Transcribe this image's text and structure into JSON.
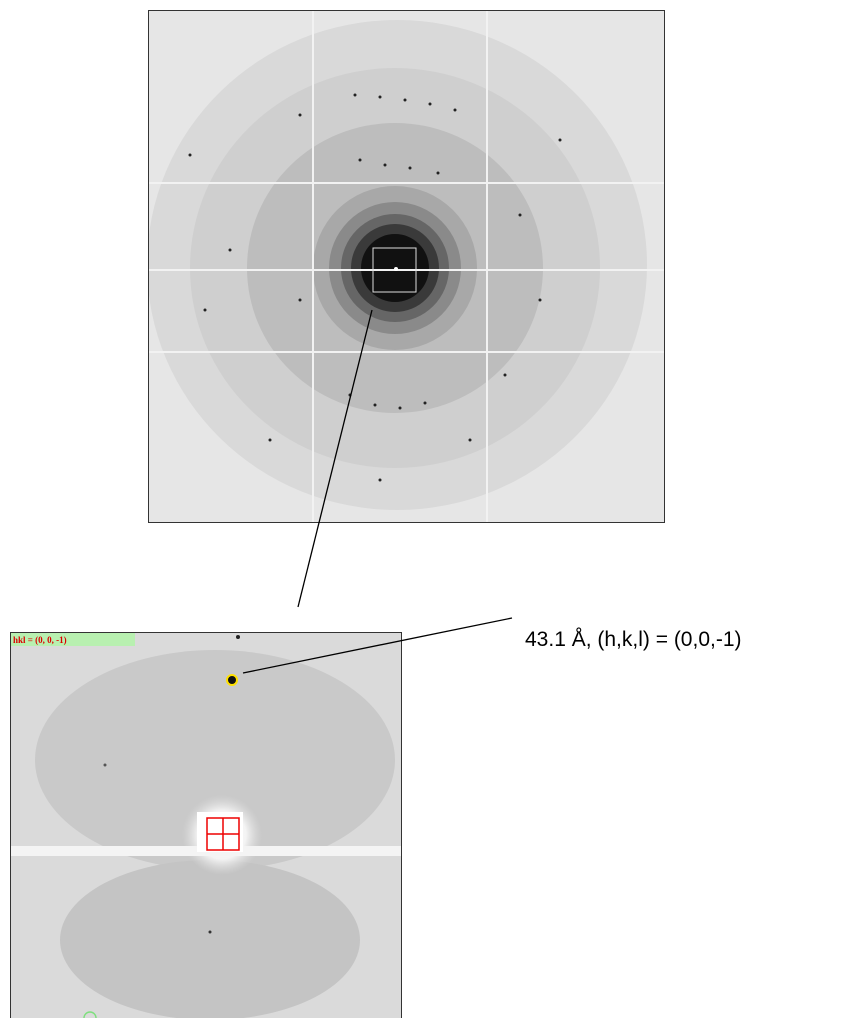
{
  "inset": {
    "label": "hkl = (0, 0, -1)"
  },
  "annotation": "43.1 Å, (h,k,l) = (0,0,-1)"
}
